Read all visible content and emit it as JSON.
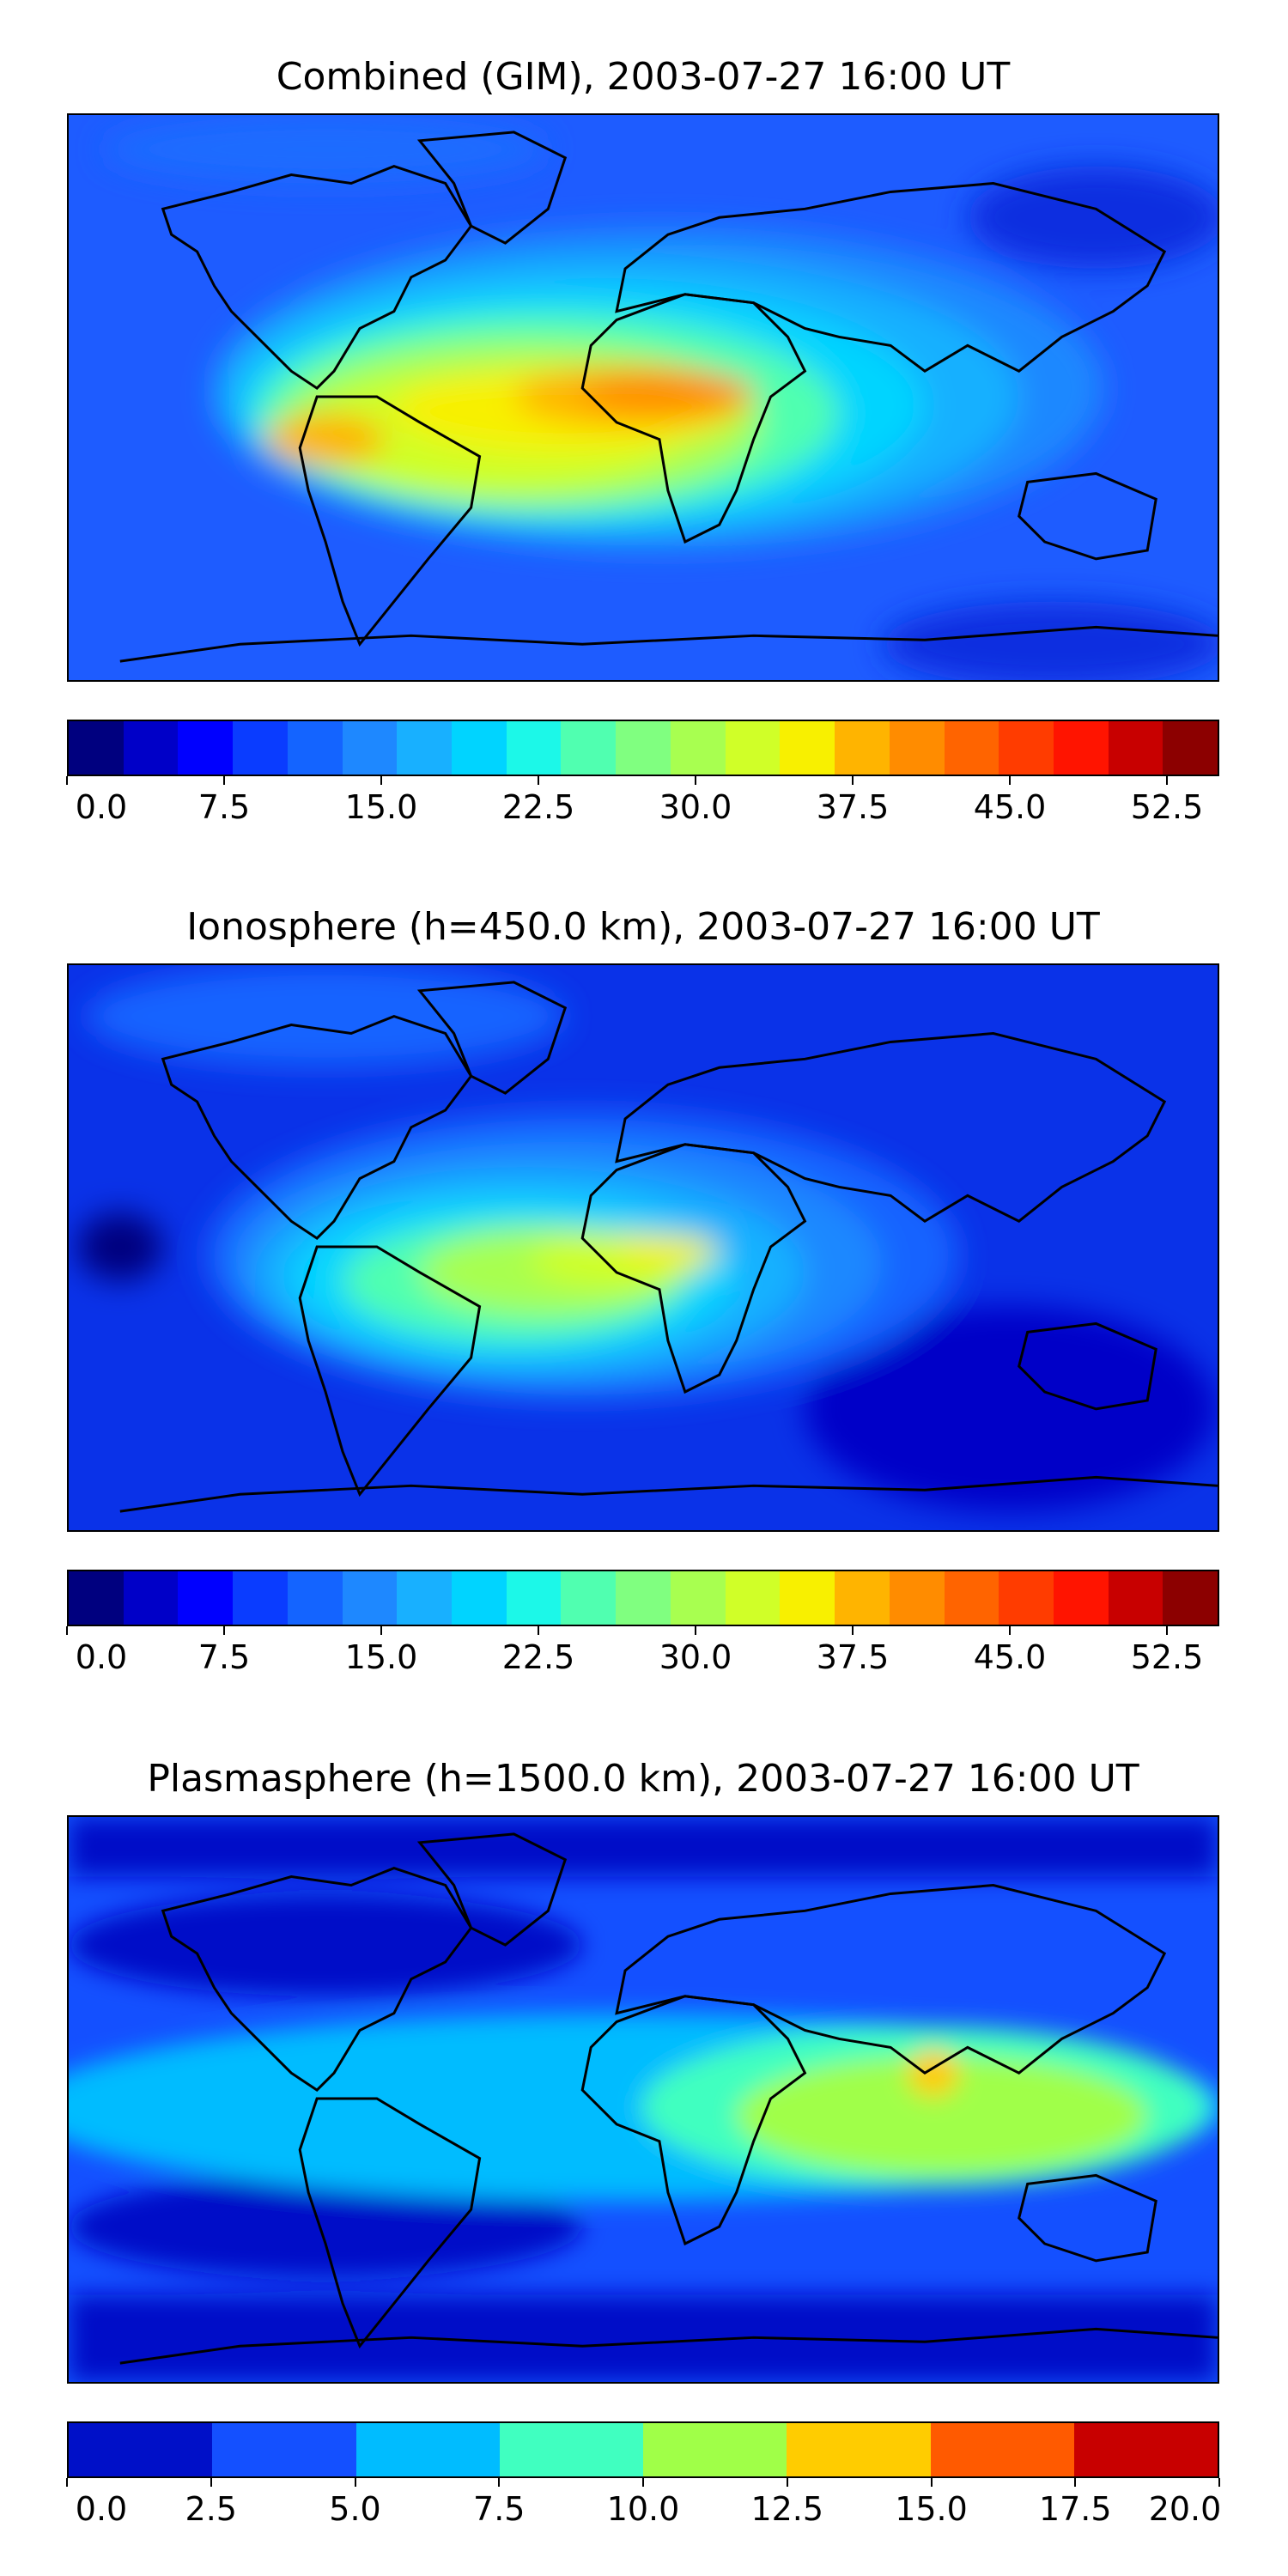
{
  "panels": [
    {
      "title": "Combined (GIM), 2003-07-27 16:00 UT",
      "background": "#1a4cff",
      "colorbar": {
        "colors": [
          "#00007f",
          "#0000c8",
          "#0000ff",
          "#0a3cff",
          "#1464ff",
          "#1e88ff",
          "#18b0ff",
          "#00d4ff",
          "#1cf8e8",
          "#50ffb0",
          "#80ff80",
          "#a8ff50",
          "#d0ff28",
          "#f8f000",
          "#ffb400",
          "#ff8c00",
          "#ff6400",
          "#ff3c00",
          "#ff1400",
          "#c80000",
          "#8c0000"
        ],
        "ticks": [
          "0.0",
          "7.5",
          "15.0",
          "22.5",
          "30.0",
          "37.5",
          "45.0",
          "52.5"
        ],
        "tick_values": [
          0,
          7.5,
          15,
          22.5,
          30,
          37.5,
          45,
          52.5
        ],
        "min": 0,
        "max": 55
      }
    },
    {
      "title": "Ionosphere  (h=450.0 km), 2003-07-27 16:00 UT",
      "background": "#0a2ee0",
      "colorbar": {
        "colors": [
          "#00007f",
          "#0000c8",
          "#0000ff",
          "#0a3cff",
          "#1464ff",
          "#1e88ff",
          "#18b0ff",
          "#00d4ff",
          "#1cf8e8",
          "#50ffb0",
          "#80ff80",
          "#a8ff50",
          "#d0ff28",
          "#f8f000",
          "#ffb400",
          "#ff8c00",
          "#ff6400",
          "#ff3c00",
          "#ff1400",
          "#c80000",
          "#8c0000"
        ],
        "ticks": [
          "0.0",
          "7.5",
          "15.0",
          "22.5",
          "30.0",
          "37.5",
          "45.0",
          "52.5"
        ],
        "tick_values": [
          0,
          7.5,
          15,
          22.5,
          30,
          37.5,
          45,
          52.5
        ],
        "min": 0,
        "max": 55
      }
    },
    {
      "title": "Plasmasphere (h=1500.0 km), 2003-07-27 16:00 UT",
      "background": "#0a3cff",
      "colorbar": {
        "colors": [
          "#0010c8",
          "#1450ff",
          "#00bcff",
          "#40ffc0",
          "#a0ff48",
          "#ffcc00",
          "#ff5a00",
          "#c80000"
        ],
        "ticks": [
          "0.0",
          "2.5",
          "5.0",
          "7.5",
          "10.0",
          "12.5",
          "15.0",
          "17.5",
          "20.0"
        ],
        "tick_values": [
          0,
          2.5,
          5,
          7.5,
          10,
          12.5,
          15,
          17.5,
          20
        ],
        "min": 0,
        "max": 20
      }
    }
  ]
}
